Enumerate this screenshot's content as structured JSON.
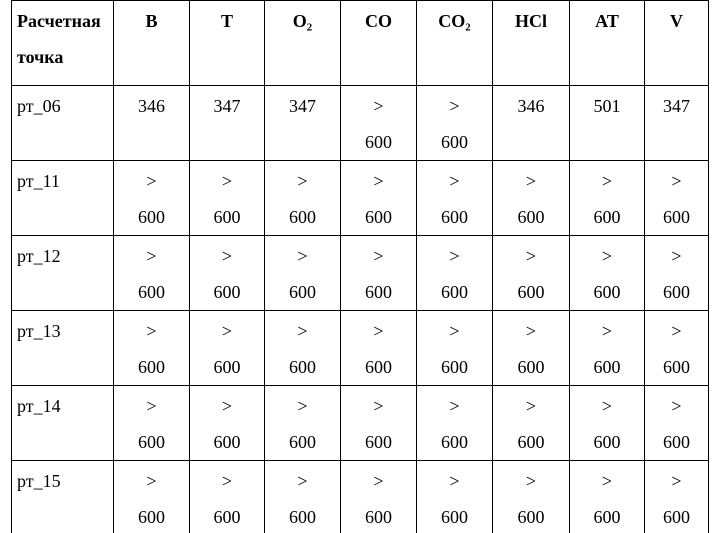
{
  "table": {
    "header": [
      "Расчетная точка",
      "B",
      "T",
      "O₂",
      "CO",
      "CO₂",
      "HCl",
      "AT",
      "V"
    ],
    "rows": [
      [
        "рт_06",
        "346",
        "347",
        "347",
        "> 600",
        "> 600",
        "346",
        "501",
        "347"
      ],
      [
        "рт_11",
        "> 600",
        "> 600",
        "> 600",
        "> 600",
        "> 600",
        "> 600",
        "> 600",
        "> 600"
      ],
      [
        "рт_12",
        "> 600",
        "> 600",
        "> 600",
        "> 600",
        "> 600",
        "> 600",
        "> 600",
        "> 600"
      ],
      [
        "рт_13",
        "> 600",
        "> 600",
        "> 600",
        "> 600",
        "> 600",
        "> 600",
        "> 600",
        "> 600"
      ],
      [
        "рт_14",
        "> 600",
        "> 600",
        "> 600",
        "> 600",
        "> 600",
        "> 600",
        "> 600",
        "> 600"
      ],
      [
        "рт_15",
        "> 600",
        "> 600",
        "> 600",
        "> 600",
        "> 600",
        "> 600",
        "> 600",
        "> 600"
      ]
    ]
  }
}
